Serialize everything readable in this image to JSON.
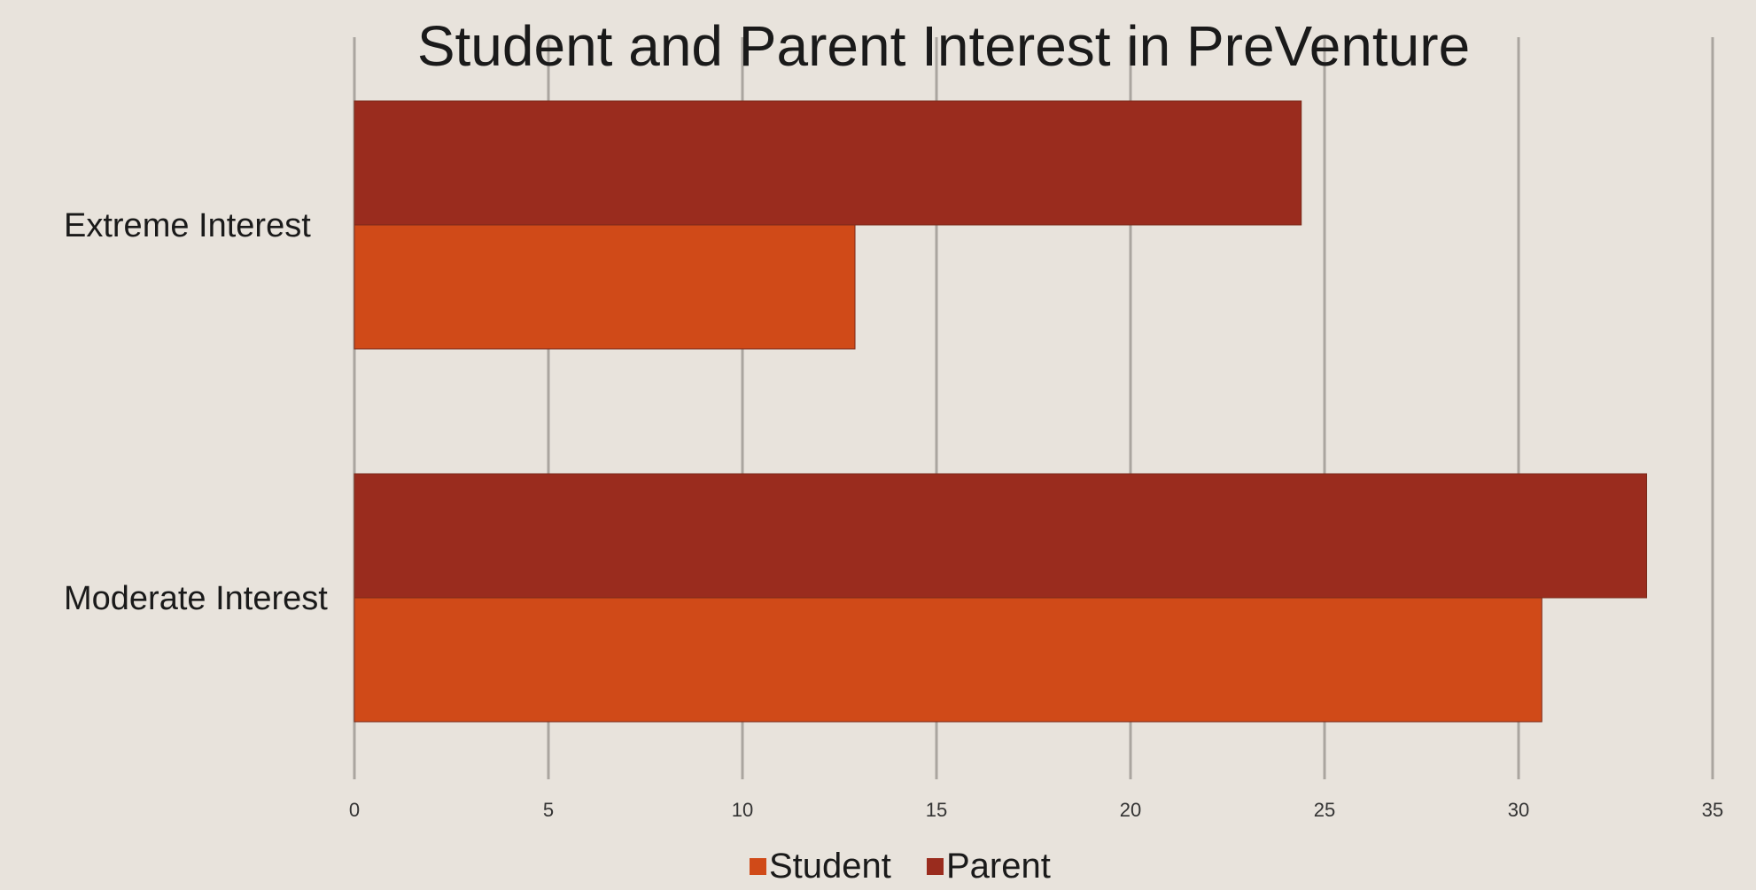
{
  "chart_data": {
    "type": "bar",
    "orientation": "horizontal",
    "title": "Student and Parent Interest in PreVenture",
    "categories": [
      "Extreme Interest",
      "Moderate Interest"
    ],
    "series": [
      {
        "name": "Student",
        "color": "#d04a18",
        "values": [
          12.9,
          30.6
        ]
      },
      {
        "name": "Parent",
        "color": "#9a2c1e",
        "values": [
          24.4,
          33.3
        ]
      }
    ],
    "xlim": [
      0,
      35
    ],
    "xticks": [
      0,
      5,
      10,
      15,
      20,
      25,
      30,
      35
    ],
    "grid": true,
    "legend_position": "bottom"
  }
}
